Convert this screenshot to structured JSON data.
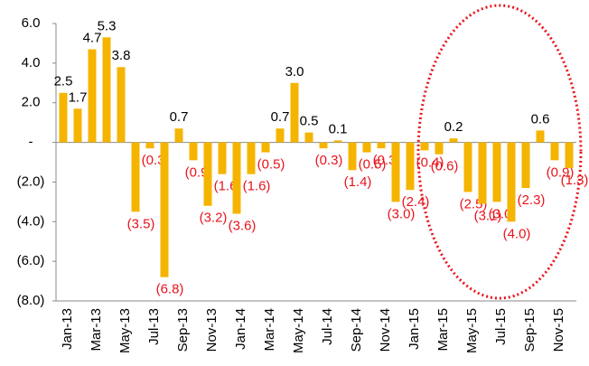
{
  "chart_data": {
    "type": "bar",
    "categories": [
      "Jan-13",
      null,
      "Mar-13",
      null,
      "May-13",
      null,
      "Jul-13",
      null,
      "Sep-13",
      null,
      "Nov-13",
      null,
      "Jan-14",
      null,
      "Mar-14",
      null,
      "May-14",
      null,
      "Jul-14",
      null,
      "Sep-14",
      null,
      "Nov-14",
      null,
      "Jan-15",
      null,
      "Mar-15",
      null,
      "May-15",
      null,
      "Jul-15",
      null,
      "Sep-15",
      null,
      "Nov-15",
      null
    ],
    "values": [
      2.5,
      1.7,
      4.7,
      5.3,
      3.8,
      -3.5,
      -0.3,
      -6.8,
      0.7,
      -0.9,
      -3.2,
      -1.6,
      -3.6,
      -1.6,
      -0.5,
      0.7,
      3.0,
      0.5,
      -0.3,
      0.1,
      -1.4,
      -0.5,
      -0.3,
      -3.0,
      -2.4,
      -0.4,
      -0.6,
      0.2,
      -2.5,
      -3.1,
      -3.0,
      -4.0,
      -2.3,
      0.6,
      -0.9,
      -1.3
    ],
    "value_labels": [
      "2.5",
      "1.7",
      "4.7",
      "5.3",
      "3.8",
      "(3.5)",
      "(0.3)",
      "(6.8)",
      "0.7",
      "(0.9)",
      "(3.2)",
      "(1.6)",
      "(3.6)",
      "(1.6)",
      "(0.5)",
      "0.7",
      "3.0",
      "0.5",
      "(0.3)",
      "0.1",
      "(1.4)",
      "(0.5)",
      "(0.3)",
      "(3.0)",
      "(2.4)",
      "(0.4)",
      "(0.6)",
      "0.2",
      "(2.5)",
      "(3.1)",
      "(3.0)",
      "(4.0)",
      "(2.3)",
      "0.6",
      "(0.9)",
      "(1.3)"
    ],
    "color": "#f5b400",
    "positive_label_color": "#000000",
    "negative_label_color": "#e8141c",
    "ylim": [
      -8,
      6
    ],
    "yticks": [
      {
        "value": 6,
        "label": "6.0"
      },
      {
        "value": 4,
        "label": "4.0"
      },
      {
        "value": 2,
        "label": "2.0"
      },
      {
        "value": 0,
        "label": "-"
      },
      {
        "value": -2,
        "label": "(2.0)"
      },
      {
        "value": -4,
        "label": "(4.0)"
      },
      {
        "value": -6,
        "label": "(6.0)"
      },
      {
        "value": -8,
        "label": "(8.0)"
      }
    ]
  }
}
